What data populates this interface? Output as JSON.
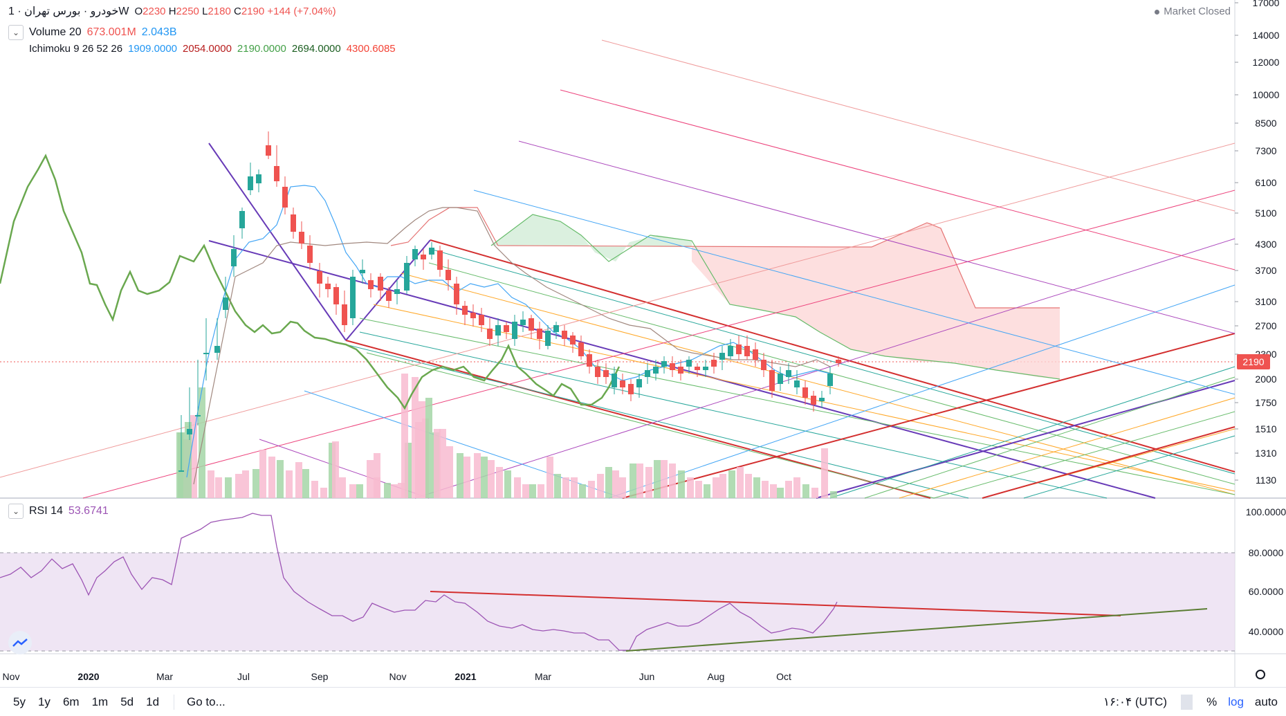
{
  "legend": {
    "symbol": "خودرو · بورس تهران · 1W",
    "o_label": "O",
    "o_value": "2230",
    "h_label": "H",
    "h_value": "2250",
    "l_label": "L",
    "l_value": "2180",
    "c_label": "C",
    "c_value": "2190",
    "change": "+144 (+7.04%)",
    "volume_name": "Volume 20",
    "volume_v1": "673.001M",
    "volume_v2": "2.043B",
    "ichimoku_name": "Ichimoku 9 26 52 26",
    "ich_v1": "1909.0000",
    "ich_v2": "2054.0000",
    "ich_v3": "2190.0000",
    "ich_v4": "2694.0000",
    "ich_v5": "4300.6085",
    "rsi_name": "RSI 14",
    "rsi_value": "53.6741"
  },
  "status": {
    "market": "Market Closed"
  },
  "price_axis": {
    "labels": [
      "17000",
      "14000",
      "12000",
      "10000",
      "8500",
      "7300",
      "6100",
      "5100",
      "4300",
      "3700",
      "3100",
      "2700",
      "2300",
      "2000",
      "1750",
      "1510",
      "1310",
      "1130"
    ],
    "last_price": "2190"
  },
  "rsi_axis": {
    "labels": [
      "100.0000",
      "80.0000",
      "60.0000",
      "40.0000"
    ]
  },
  "time_axis": {
    "labels": [
      "Nov",
      "2020",
      "Mar",
      "Jul",
      "Sep",
      "Nov",
      "2021",
      "Mar",
      "Jun",
      "Aug",
      "Oct"
    ]
  },
  "bottom_bar": {
    "ranges": [
      "5y",
      "1y",
      "6m",
      "1m",
      "5d",
      "1d"
    ],
    "goto": "Go to...",
    "clock": "۱۶:۰۴ (UTC)",
    "percent": "%",
    "log": "log",
    "auto": "auto"
  },
  "colors": {
    "up": "#26a69a",
    "down": "#ef5350",
    "rsi": "#9c54b4",
    "cloud_red": "#fcd7d7",
    "cloud_green": "#d7eedb",
    "accent": "#2962ff"
  },
  "icons": {
    "settings": "gear-icon",
    "logo": "tradingview-logo-icon",
    "collapse": "chevron-down-icon"
  }
}
